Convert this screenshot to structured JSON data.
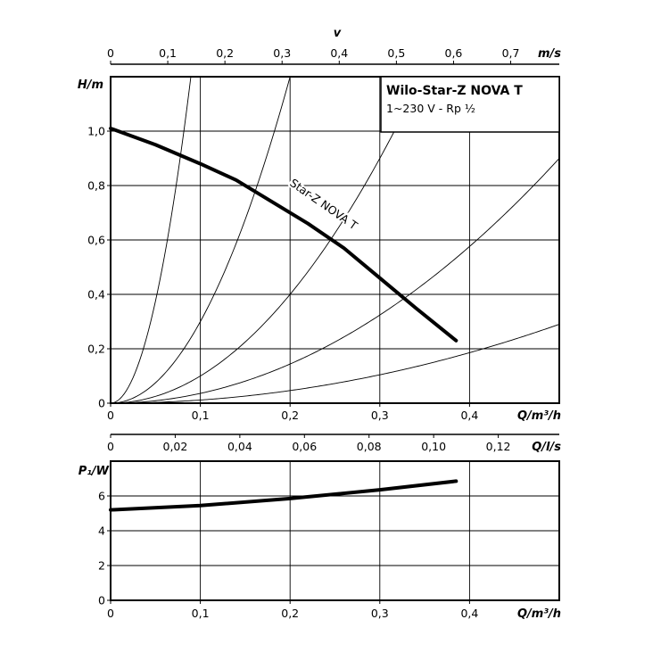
{
  "chart_data": [
    {
      "type": "line",
      "title": "Wilo-Star-Z NOVA T",
      "subtitle": "1~230 V - Rp ½",
      "xlabel": "Q/m³/h",
      "ylabel": "H/m",
      "xlim": [
        0,
        0.5
      ],
      "ylim": [
        0,
        1.2
      ],
      "xticks": [
        "0",
        "0,1",
        "0,2",
        "0,3",
        "0,4"
      ],
      "yticks": [
        "0",
        "0,2",
        "0,4",
        "0,6",
        "0,8",
        "1,0"
      ],
      "grid": true,
      "top_axis": {
        "label": "v",
        "unit": "m/s",
        "ticks": [
          "0",
          "0,1",
          "0,2",
          "0,3",
          "0,4",
          "0,5",
          "0,6",
          "0,7"
        ]
      },
      "bottom_secondary_axis": {
        "unit": "Q/l/s",
        "ticks": [
          "0",
          "0,02",
          "0,04",
          "0,06",
          "0,08",
          "0,10",
          "0,12"
        ]
      },
      "series": [
        {
          "name": "Star-Z NOVA T",
          "x": [
            0,
            0.05,
            0.1,
            0.14,
            0.18,
            0.22,
            0.26,
            0.3,
            0.34,
            0.385
          ],
          "y": [
            1.01,
            0.95,
            0.88,
            0.82,
            0.74,
            0.66,
            0.57,
            0.46,
            0.35,
            0.23
          ]
        }
      ],
      "system_curves": [
        {
          "x": [
            0,
            0.02,
            0.04,
            0.06,
            0.08,
            0.092
          ],
          "y": [
            0,
            0.047,
            0.19,
            0.43,
            0.76,
            1.2
          ]
        },
        {
          "x": [
            0,
            0.05,
            0.1,
            0.15,
            0.2
          ],
          "y": [
            0,
            0.075,
            0.3,
            0.675,
            1.2
          ]
        },
        {
          "x": [
            0,
            0.08,
            0.16,
            0.24,
            0.32
          ],
          "y": [
            0,
            0.0625,
            0.25,
            0.5625,
            1.0
          ]
        },
        {
          "x": [
            0,
            0.1,
            0.2,
            0.3,
            0.4,
            0.5
          ],
          "y": [
            0,
            0.036,
            0.144,
            0.324,
            0.576,
            0.9
          ]
        },
        {
          "x": [
            0,
            0.1,
            0.2,
            0.3,
            0.4,
            0.5
          ],
          "y": [
            0,
            0.0116,
            0.0464,
            0.1044,
            0.1856,
            0.29
          ]
        }
      ]
    },
    {
      "type": "line",
      "xlabel": "Q/m³/h",
      "ylabel": "P₁/W",
      "xlim": [
        0,
        0.5
      ],
      "ylim": [
        0,
        8
      ],
      "xticks": [
        "0",
        "0,1",
        "0,2",
        "0,3",
        "0,4"
      ],
      "yticks": [
        "0",
        "2",
        "4",
        "6"
      ],
      "grid": true,
      "series": [
        {
          "x": [
            0,
            0.1,
            0.2,
            0.3,
            0.385
          ],
          "y": [
            5.2,
            5.45,
            5.85,
            6.35,
            6.85
          ]
        }
      ]
    }
  ]
}
